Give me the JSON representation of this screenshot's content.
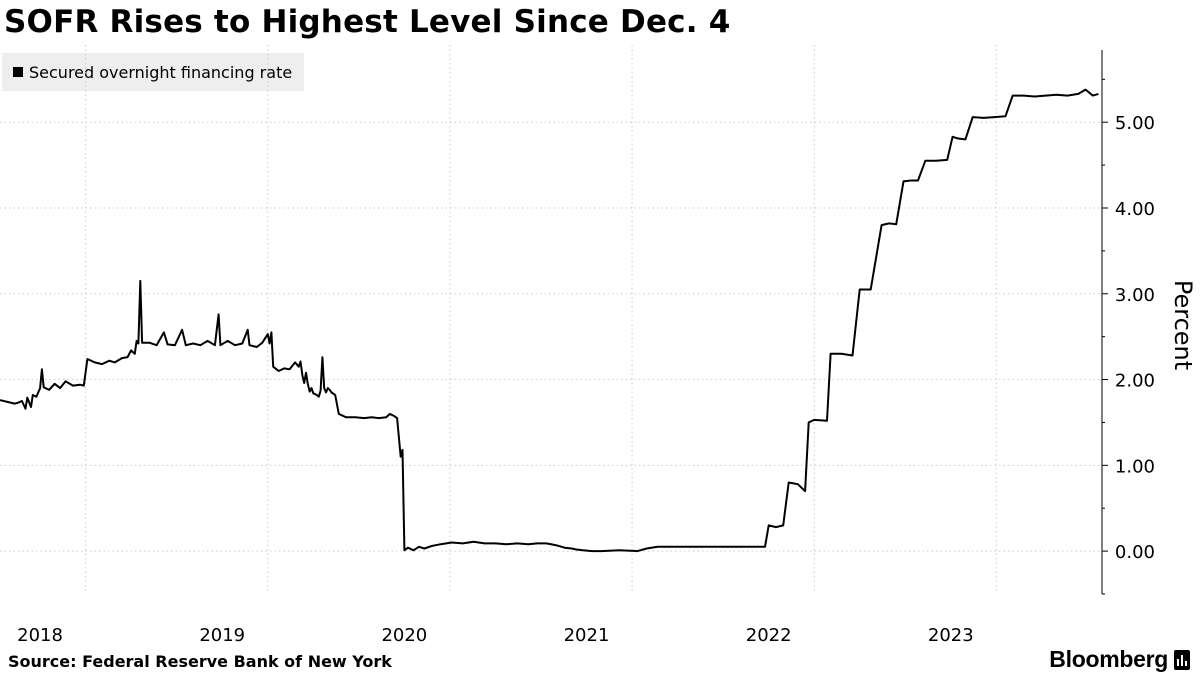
{
  "title": "SOFR Rises to Highest Level Since Dec. 4",
  "legend": {
    "label": "Secured overnight financing rate",
    "color": "#000000"
  },
  "source": "Source: Federal Reserve Bank of New York",
  "brand": "Bloomberg",
  "brand_icon": "bloomberg-terminal-icon",
  "chart_data": {
    "type": "line",
    "title": "SOFR Rises to Highest Level Since Dec. 4",
    "xlabel": "",
    "ylabel": "Percent",
    "ylim": [
      -0.5,
      5.9
    ],
    "y_ticks": [
      "0.00",
      "1.00",
      "2.00",
      "3.00",
      "4.00",
      "5.00"
    ],
    "x_ticks": [
      "2018",
      "2019",
      "2020",
      "2021",
      "2022",
      "2023"
    ],
    "xlim": [
      2018.0,
      2024.05
    ],
    "grid": true,
    "legend_position": "top-left",
    "series": [
      {
        "name": "Secured overnight financing rate",
        "color": "#000000",
        "points": [
          [
            2018.0,
            1.76
          ],
          [
            2018.04,
            1.74
          ],
          [
            2018.08,
            1.72
          ],
          [
            2018.1,
            1.73
          ],
          [
            2018.12,
            1.75
          ],
          [
            2018.14,
            1.66
          ],
          [
            2018.15,
            1.79
          ],
          [
            2018.17,
            1.68
          ],
          [
            2018.18,
            1.82
          ],
          [
            2018.2,
            1.8
          ],
          [
            2018.22,
            1.9
          ],
          [
            2018.23,
            2.12
          ],
          [
            2018.24,
            1.91
          ],
          [
            2018.27,
            1.88
          ],
          [
            2018.3,
            1.95
          ],
          [
            2018.33,
            1.9
          ],
          [
            2018.36,
            1.98
          ],
          [
            2018.4,
            1.93
          ],
          [
            2018.44,
            1.94
          ],
          [
            2018.46,
            1.93
          ],
          [
            2018.48,
            2.24
          ],
          [
            2018.52,
            2.2
          ],
          [
            2018.56,
            2.18
          ],
          [
            2018.6,
            2.22
          ],
          [
            2018.63,
            2.2
          ],
          [
            2018.67,
            2.25
          ],
          [
            2018.7,
            2.26
          ],
          [
            2018.72,
            2.34
          ],
          [
            2018.74,
            2.3
          ],
          [
            2018.75,
            2.45
          ],
          [
            2018.76,
            2.42
          ],
          [
            2018.77,
            3.15
          ],
          [
            2018.78,
            2.43
          ],
          [
            2018.82,
            2.43
          ],
          [
            2018.86,
            2.4
          ],
          [
            2018.9,
            2.55
          ],
          [
            2018.92,
            2.41
          ],
          [
            2018.96,
            2.4
          ],
          [
            2019.0,
            2.58
          ],
          [
            2019.02,
            2.4
          ],
          [
            2019.06,
            2.42
          ],
          [
            2019.1,
            2.4
          ],
          [
            2019.14,
            2.45
          ],
          [
            2019.18,
            2.4
          ],
          [
            2019.2,
            2.76
          ],
          [
            2019.21,
            2.4
          ],
          [
            2019.25,
            2.45
          ],
          [
            2019.29,
            2.4
          ],
          [
            2019.33,
            2.42
          ],
          [
            2019.36,
            2.58
          ],
          [
            2019.37,
            2.4
          ],
          [
            2019.41,
            2.38
          ],
          [
            2019.44,
            2.43
          ],
          [
            2019.47,
            2.53
          ],
          [
            2019.48,
            2.42
          ],
          [
            2019.49,
            2.55
          ],
          [
            2019.5,
            2.15
          ],
          [
            2019.53,
            2.1
          ],
          [
            2019.56,
            2.13
          ],
          [
            2019.59,
            2.12
          ],
          [
            2019.62,
            2.2
          ],
          [
            2019.64,
            2.15
          ],
          [
            2019.65,
            2.21
          ],
          [
            2019.66,
            2.05
          ],
          [
            2019.67,
            1.96
          ],
          [
            2019.68,
            2.08
          ],
          [
            2019.69,
            1.95
          ],
          [
            2019.7,
            1.86
          ],
          [
            2019.71,
            1.9
          ],
          [
            2019.72,
            1.84
          ],
          [
            2019.74,
            1.82
          ],
          [
            2019.75,
            1.8
          ],
          [
            2019.76,
            1.87
          ],
          [
            2019.77,
            2.26
          ],
          [
            2019.78,
            1.9
          ],
          [
            2019.79,
            1.85
          ],
          [
            2019.8,
            1.9
          ],
          [
            2019.81,
            1.88
          ],
          [
            2019.82,
            1.85
          ],
          [
            2019.84,
            1.82
          ],
          [
            2019.86,
            1.6
          ],
          [
            2019.9,
            1.56
          ],
          [
            2019.95,
            1.56
          ],
          [
            2020.0,
            1.55
          ],
          [
            2020.04,
            1.56
          ],
          [
            2020.08,
            1.55
          ],
          [
            2020.12,
            1.56
          ],
          [
            2020.14,
            1.6
          ],
          [
            2020.16,
            1.58
          ],
          [
            2020.18,
            1.55
          ],
          [
            2020.2,
            1.1
          ],
          [
            2020.21,
            1.18
          ],
          [
            2020.22,
            0.01
          ],
          [
            2020.24,
            0.04
          ],
          [
            2020.27,
            0.01
          ],
          [
            2020.3,
            0.05
          ],
          [
            2020.33,
            0.03
          ],
          [
            2020.37,
            0.06
          ],
          [
            2020.42,
            0.08
          ],
          [
            2020.48,
            0.1
          ],
          [
            2020.54,
            0.09
          ],
          [
            2020.6,
            0.11
          ],
          [
            2020.66,
            0.09
          ],
          [
            2020.72,
            0.09
          ],
          [
            2020.78,
            0.08
          ],
          [
            2020.84,
            0.09
          ],
          [
            2020.9,
            0.08
          ],
          [
            2020.95,
            0.09
          ],
          [
            2021.0,
            0.09
          ],
          [
            2021.05,
            0.07
          ],
          [
            2021.1,
            0.04
          ],
          [
            2021.14,
            0.03
          ],
          [
            2021.16,
            0.02
          ],
          [
            2021.2,
            0.01
          ],
          [
            2021.25,
            0.0
          ],
          [
            2021.3,
            0.0
          ],
          [
            2021.4,
            0.01
          ],
          [
            2021.5,
            0.0
          ],
          [
            2021.55,
            0.03
          ],
          [
            2021.61,
            0.05
          ],
          [
            2021.7,
            0.05
          ],
          [
            2021.8,
            0.05
          ],
          [
            2021.9,
            0.05
          ],
          [
            2022.0,
            0.05
          ],
          [
            2022.1,
            0.05
          ],
          [
            2022.2,
            0.05
          ],
          [
            2022.22,
            0.3
          ],
          [
            2022.26,
            0.28
          ],
          [
            2022.3,
            0.3
          ],
          [
            2022.33,
            0.8
          ],
          [
            2022.38,
            0.78
          ],
          [
            2022.42,
            0.7
          ],
          [
            2022.44,
            1.5
          ],
          [
            2022.47,
            1.53
          ],
          [
            2022.54,
            1.52
          ],
          [
            2022.56,
            2.3
          ],
          [
            2022.62,
            2.3
          ],
          [
            2022.68,
            2.28
          ],
          [
            2022.72,
            3.05
          ],
          [
            2022.78,
            3.05
          ],
          [
            2022.84,
            3.8
          ],
          [
            2022.88,
            3.82
          ],
          [
            2022.92,
            3.81
          ],
          [
            2022.96,
            4.31
          ],
          [
            2023.0,
            4.32
          ],
          [
            2023.04,
            4.32
          ],
          [
            2023.08,
            4.55
          ],
          [
            2023.14,
            4.55
          ],
          [
            2023.2,
            4.56
          ],
          [
            2023.23,
            4.83
          ],
          [
            2023.26,
            4.81
          ],
          [
            2023.3,
            4.8
          ],
          [
            2023.34,
            5.06
          ],
          [
            2023.4,
            5.05
          ],
          [
            2023.46,
            5.06
          ],
          [
            2023.52,
            5.07
          ],
          [
            2023.56,
            5.31
          ],
          [
            2023.62,
            5.31
          ],
          [
            2023.68,
            5.3
          ],
          [
            2023.74,
            5.31
          ],
          [
            2023.8,
            5.32
          ],
          [
            2023.86,
            5.31
          ],
          [
            2023.92,
            5.33
          ],
          [
            2023.96,
            5.38
          ],
          [
            2024.0,
            5.31
          ],
          [
            2024.03,
            5.33
          ]
        ]
      }
    ]
  }
}
